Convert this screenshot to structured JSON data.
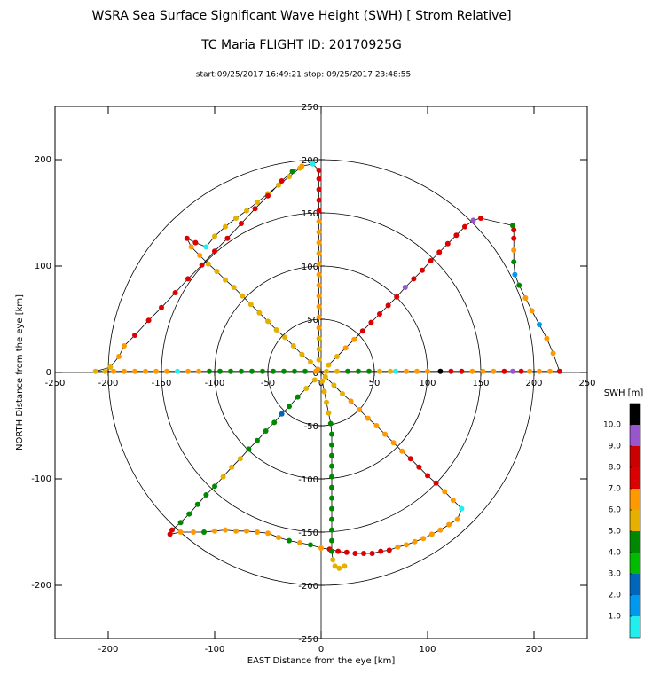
{
  "chart_data": {
    "type": "scatter",
    "title": "WSRA Sea Surface Significant Wave Height (SWH) [ Strom Relative]",
    "subtitle": "TC Maria FLIGHT ID: 20170925G",
    "time_range": "start:09/25/2017 16:49:21 stop: 09/25/2017 23:48:55",
    "xlabel": "EAST Distance from the eye [km]",
    "ylabel": "NORTH Distance from the eye [km]",
    "xlim": [
      -250,
      250
    ],
    "ylim": [
      -250,
      250
    ],
    "xticks": [
      -200,
      -100,
      0,
      100,
      200
    ],
    "yticks": [
      -200,
      -100,
      0,
      100,
      200
    ],
    "center_xticks": [
      -250,
      -200,
      -150,
      -100,
      -50,
      0,
      50,
      100,
      150,
      200,
      250
    ],
    "center_yticks": [
      -250,
      -200,
      -150,
      -100,
      -50,
      0,
      50,
      100,
      150,
      200,
      250
    ],
    "rings": [
      50,
      100,
      150,
      200
    ],
    "line_color": "#000000",
    "x": [
      -20,
      -30,
      -40,
      -50,
      -60,
      -70,
      -80,
      -90,
      -100,
      -108,
      -118,
      -126,
      -122,
      -114,
      -106,
      -98,
      -90,
      -82,
      -74,
      -66,
      -58,
      -50,
      -42,
      -34,
      -26,
      -18,
      -10,
      -3,
      4,
      12,
      20,
      28,
      36,
      44,
      52,
      60,
      68,
      76,
      84,
      92,
      100,
      108,
      116,
      124,
      132,
      128,
      120,
      112,
      104,
      96,
      88,
      80,
      72,
      64,
      56,
      48,
      40,
      32,
      24,
      16,
      8,
      0,
      -10,
      -20,
      -30,
      -40,
      -50,
      -60,
      -70,
      -80,
      -90,
      -100,
      -110,
      -120,
      -132,
      -142,
      -140,
      -132,
      -124,
      -116,
      -108,
      -100,
      -92,
      -84,
      -76,
      -68,
      -60,
      -52,
      -44,
      -37,
      -30,
      -22,
      -14,
      -6,
      1,
      3,
      5,
      7,
      9,
      10,
      10,
      10,
      10,
      10,
      10,
      10,
      10,
      10,
      10,
      10,
      10,
      11,
      13,
      17,
      22,
      null,
      -2,
      -2,
      -2,
      -2,
      -2,
      -2,
      -2,
      -2,
      -2,
      -2,
      -2,
      -2,
      -2,
      -2,
      -2,
      -2,
      -2,
      -2,
      -2,
      -8,
      -18,
      -27,
      -37,
      -50,
      -62,
      -75,
      -88,
      -100,
      -112,
      -125,
      -137,
      -150,
      -162,
      -175,
      -185,
      -190,
      -198,
      -212,
      -203,
      -195,
      -185,
      -175,
      -165,
      -155,
      -145,
      -135,
      -125,
      -115,
      -105,
      -95,
      -85,
      -75,
      -65,
      -55,
      -45,
      -35,
      -25,
      -15,
      -5,
      5,
      15,
      25,
      35,
      45,
      55,
      65,
      70,
      80,
      90,
      100,
      112,
      122,
      132,
      142,
      152,
      162,
      172,
      180,
      188,
      196,
      205,
      215,
      224,
      218,
      212,
      205,
      198,
      192,
      186,
      182,
      181,
      181,
      181,
      181,
      180,
      150,
      143,
      135,
      127,
      119,
      111,
      103,
      95,
      87,
      79,
      71,
      63,
      55,
      47,
      39,
      31,
      23,
      15,
      7
    ],
    "y": [
      192,
      184,
      176,
      168,
      160,
      152,
      145,
      137,
      128,
      118,
      122,
      126,
      118,
      110,
      102,
      95,
      87,
      80,
      72,
      64,
      56,
      48,
      40,
      33,
      25,
      17,
      10,
      3,
      -4,
      -12,
      -20,
      -27,
      -35,
      -43,
      -50,
      -58,
      -66,
      -74,
      -81,
      -89,
      -97,
      -104,
      -112,
      -120,
      -128,
      -138,
      -143,
      -148,
      -152,
      -156,
      -159,
      -162,
      -164,
      -167,
      -168,
      -170,
      -170,
      -170,
      -169,
      -168,
      -166,
      -165,
      -162,
      -160,
      -158,
      -155,
      -151,
      -150,
      -149,
      -149,
      -148,
      -149,
      -150,
      -150,
      -150,
      -152,
      -148,
      -141,
      -133,
      -124,
      -115,
      -107,
      -98,
      -89,
      -81,
      -72,
      -64,
      -55,
      -47,
      -39,
      -32,
      -23,
      -15,
      -7,
      -8,
      -18,
      -28,
      -38,
      -48,
      -58,
      -68,
      -78,
      -88,
      -98,
      -108,
      -118,
      -128,
      -138,
      -148,
      -158,
      -168,
      -176,
      -182,
      -184,
      -182,
      null,
      12,
      22,
      32,
      42,
      52,
      62,
      72,
      82,
      92,
      102,
      112,
      122,
      132,
      142,
      152,
      162,
      172,
      182,
      190,
      196,
      194,
      189,
      180,
      166,
      154,
      140,
      126,
      114,
      101,
      88,
      75,
      61,
      49,
      35,
      25,
      15,
      5,
      1,
      1,
      1,
      1,
      1,
      1,
      1,
      1,
      1,
      1,
      1,
      1,
      1,
      1,
      1,
      1,
      1,
      1,
      1,
      1,
      1,
      1,
      1,
      1,
      1,
      1,
      1,
      1,
      1,
      1,
      1,
      1,
      1,
      1,
      1,
      1,
      1,
      1,
      1,
      1,
      1,
      1,
      1,
      1,
      1,
      1,
      18,
      32,
      45,
      58,
      70,
      82,
      92,
      104,
      115,
      126,
      134,
      138,
      145,
      143,
      137,
      129,
      121,
      113,
      105,
      96,
      88,
      80,
      71,
      63,
      55,
      47,
      39,
      31,
      23,
      15,
      7
    ],
    "values": [
      5.5,
      5.5,
      5.5,
      5.5,
      5.5,
      5.5,
      5.5,
      5.5,
      5.5,
      0.5,
      7.5,
      7.5,
      6.5,
      6.5,
      5.5,
      5.5,
      5.5,
      5.5,
      5.5,
      5.5,
      5.5,
      5.5,
      5.5,
      5.5,
      5.5,
      5.5,
      5.5,
      6.5,
      5.5,
      5.5,
      5.5,
      6.5,
      6.5,
      6.5,
      6.5,
      6.5,
      6.5,
      6.5,
      7.5,
      7.5,
      7.5,
      7.5,
      6.5,
      6.5,
      0.5,
      6.5,
      6.5,
      6.5,
      6.5,
      6.5,
      6.5,
      6.5,
      6.5,
      7.5,
      7.5,
      7.5,
      7.5,
      7.5,
      7.5,
      7.5,
      7.5,
      6.5,
      4.5,
      6.5,
      4.5,
      6.5,
      6.5,
      6.5,
      6.5,
      6.5,
      6.5,
      6.5,
      4.5,
      6.5,
      6.5,
      7.5,
      7.5,
      4.5,
      4.5,
      4.5,
      4.5,
      4.5,
      5.5,
      5.5,
      5.5,
      4.5,
      4.5,
      4.5,
      4.5,
      2.5,
      4.5,
      4.5,
      5.5,
      5.5,
      5.5,
      5.5,
      5.5,
      5.5,
      4.5,
      4.5,
      4.5,
      4.5,
      4.5,
      4.5,
      4.5,
      4.5,
      4.5,
      4.5,
      4.5,
      4.5,
      4.5,
      5.5,
      5.5,
      5.5,
      5.5,
      null,
      5.5,
      5.5,
      5.5,
      6.5,
      6.5,
      6.5,
      6.5,
      6.5,
      6.5,
      6.5,
      6.5,
      6.5,
      6.5,
      6.5,
      7.5,
      7.5,
      7.5,
      7.5,
      7.5,
      0.5,
      6.5,
      4.5,
      7.5,
      7.5,
      7.5,
      7.5,
      7.5,
      7.5,
      7.5,
      7.5,
      7.5,
      7.5,
      7.5,
      7.5,
      6.5,
      6.5,
      5.5,
      5.5,
      5.5,
      6.5,
      6.5,
      6.5,
      6.5,
      6.5,
      6.5,
      0.5,
      6.5,
      6.5,
      4.5,
      4.5,
      4.5,
      4.5,
      4.5,
      4.5,
      4.5,
      4.5,
      4.5,
      4.5,
      6.5,
      5.5,
      5.5,
      4.5,
      4.5,
      4.5,
      5.5,
      5.5,
      0.5,
      6.5,
      6.5,
      6.5,
      10.5,
      7.5,
      7.5,
      6.5,
      6.5,
      6.5,
      7.5,
      9.5,
      7.5,
      6.5,
      6.5,
      6.5,
      7.5,
      6.5,
      6.5,
      1.5,
      6.5,
      6.5,
      4.5,
      1.5,
      4.5,
      6.5,
      7.5,
      7.5,
      4.5,
      7.5,
      9.5,
      7.5,
      7.5,
      7.5,
      7.5,
      7.5,
      7.5,
      7.5,
      9.5,
      7.5,
      7.5,
      7.5,
      7.5,
      7.5,
      6.5,
      6.5,
      5.5,
      5.5
    ],
    "colorbar": {
      "title": "SWH [m]",
      "lim": [
        0,
        11
      ],
      "colors": [
        "#22eeee",
        "#0099ee",
        "#0066bb",
        "#00bb00",
        "#008800",
        "#e6b000",
        "#ff9900",
        "#dd0000",
        "#cc0000",
        "#9955cc",
        "#000000"
      ],
      "ticks": [
        {
          "value": 1,
          "label": "1.0"
        },
        {
          "value": 2,
          "label": "2.0"
        },
        {
          "value": 3,
          "label": "3.0"
        },
        {
          "value": 4,
          "label": "4.0"
        },
        {
          "value": 5,
          "label": "5.0"
        },
        {
          "value": 6,
          "label": "6.0"
        },
        {
          "value": 7,
          "label": "7.0"
        },
        {
          "value": 8,
          "label": "8.0"
        },
        {
          "value": 9,
          "label": "9.0"
        },
        {
          "value": 10,
          "label": "10.0"
        }
      ]
    }
  }
}
